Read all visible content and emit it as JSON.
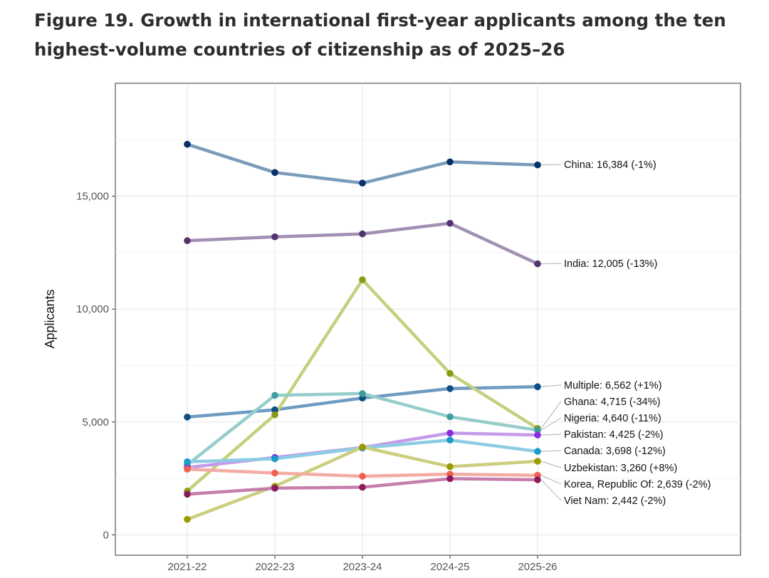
{
  "figure": {
    "title_line1": "Figure 19. Growth in international first-year applicants among the ten",
    "title_line2": "highest-volume countries of citizenship as of 2025–26"
  },
  "chart_data": {
    "type": "line",
    "title": "Figure 19. Growth in international first-year applicants among the ten highest-volume countries of citizenship as of 2025–26",
    "xlabel": "",
    "ylabel": "Applicants",
    "categories": [
      "2021-22",
      "2022-23",
      "2023-24",
      "2024-25",
      "2025-26"
    ],
    "ylim": [
      -900,
      20000
    ],
    "yticks": [
      0,
      5000,
      10000,
      15000
    ],
    "ytick_labels": [
      "0",
      "5,000",
      "10,000",
      "15,000"
    ],
    "grid": true,
    "series": [
      {
        "name": "China",
        "label": "China: 16,384 (-1%)",
        "color": "#08306b",
        "line_color": "#7b9bbb",
        "values": [
          17300,
          16050,
          15580,
          16520,
          16384
        ]
      },
      {
        "name": "India",
        "label": "India: 12,005 (-13%)",
        "color": "#54326e",
        "line_color": "#a190b3",
        "values": [
          13030,
          13200,
          13330,
          13800,
          12005
        ]
      },
      {
        "name": "Multiple",
        "label": "Multiple: 6,562 (+1%)",
        "color": "#0d4f84",
        "line_color": "#6f9bc1",
        "values": [
          5220,
          5540,
          6060,
          6480,
          6562
        ]
      },
      {
        "name": "Ghana",
        "label": "Ghana: 4,715 (-34%)",
        "color": "#8a9a14",
        "line_color": "#c3d07d",
        "values": [
          1940,
          5320,
          11300,
          7150,
          4715
        ]
      },
      {
        "name": "Nigeria",
        "label": "Nigeria: 4,640 (-11%)",
        "color": "#3d9e9b",
        "line_color": "#94cdcb",
        "values": [
          3100,
          6180,
          6260,
          5230,
          4640
        ]
      },
      {
        "name": "Pakistan",
        "label": "Pakistan: 4,425 (-2%)",
        "color": "#8a2be2",
        "line_color": "#c49be9",
        "values": [
          2980,
          3430,
          3870,
          4510,
          4425
        ]
      },
      {
        "name": "Canada",
        "label": "Canada: 3,698 (-12%)",
        "color": "#1a9bc9",
        "line_color": "#8ccde3",
        "values": [
          3240,
          3370,
          3850,
          4200,
          3698
        ]
      },
      {
        "name": "Uzbekistan",
        "label": "Uzbekistan: 3,260 (+8%)",
        "color": "#9a9a00",
        "line_color": "#cdcd80",
        "values": [
          690,
          2150,
          3890,
          3020,
          3260
        ]
      },
      {
        "name": "Korea, Republic Of",
        "label": "Korea, Republic Of: 2,639 (-2%)",
        "color": "#ee6050",
        "line_color": "#f3aca4",
        "values": [
          2910,
          2740,
          2600,
          2690,
          2639
        ]
      },
      {
        "name": "Viet Nam",
        "label": "Viet Nam: 2,442 (-2%)",
        "color": "#8b1a5c",
        "line_color": "#c57eab",
        "values": [
          1800,
          2070,
          2110,
          2490,
          2442
        ]
      }
    ]
  }
}
